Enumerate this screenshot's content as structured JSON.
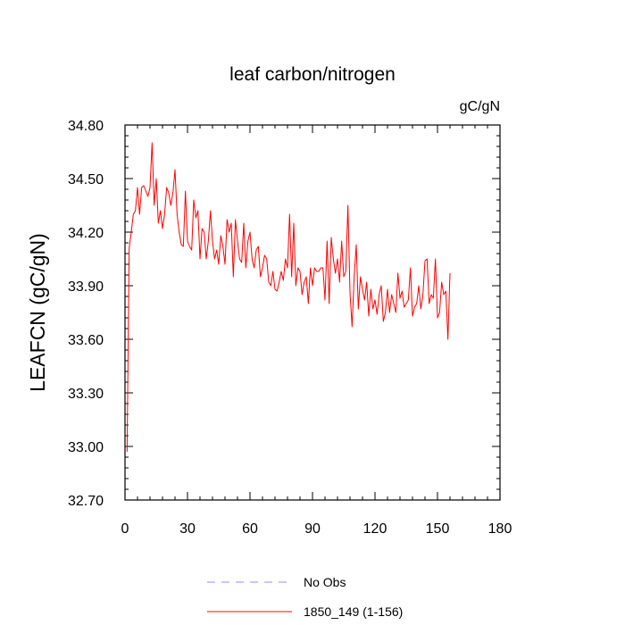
{
  "chart_data": {
    "type": "line",
    "title": "leaf carbon/nitrogen",
    "units_label": "gC/gN",
    "ylabel": "LEAFCN  (gC/gN)",
    "xlabel": "",
    "xlim": [
      0,
      180
    ],
    "ylim": [
      32.7,
      34.8
    ],
    "x_ticks": [
      0,
      30,
      60,
      90,
      120,
      150,
      180
    ],
    "x_tick_labels": [
      "0",
      "30",
      "60",
      "90",
      "120",
      "150",
      "180"
    ],
    "y_ticks": [
      32.7,
      33.0,
      33.3,
      33.6,
      33.9,
      34.2,
      34.5,
      34.8
    ],
    "y_tick_labels": [
      "32.70",
      "33.00",
      "33.30",
      "33.60",
      "33.90",
      "34.20",
      "34.50",
      "34.80"
    ],
    "grid": false,
    "legend_position": "bottom",
    "legend": [
      {
        "label": "No Obs",
        "color": "#8c8cff",
        "style": "dashed"
      },
      {
        "label": "1850_149 (1-156)",
        "color": "#ff0000",
        "style": "solid"
      }
    ],
    "series": [
      {
        "name": "1850_149 (1-156)",
        "color": "#ff0000",
        "x": [
          1,
          2,
          3,
          4,
          5,
          6,
          7,
          8,
          9,
          10,
          11,
          12,
          13,
          14,
          15,
          16,
          17,
          18,
          19,
          20,
          21,
          22,
          23,
          24,
          25,
          26,
          27,
          28,
          29,
          30,
          31,
          32,
          33,
          34,
          35,
          36,
          37,
          38,
          39,
          40,
          41,
          42,
          43,
          44,
          45,
          46,
          47,
          48,
          49,
          50,
          51,
          52,
          53,
          54,
          55,
          56,
          57,
          58,
          59,
          60,
          61,
          62,
          63,
          64,
          65,
          66,
          67,
          68,
          69,
          70,
          71,
          72,
          73,
          74,
          75,
          76,
          77,
          78,
          79,
          80,
          81,
          82,
          83,
          84,
          85,
          86,
          87,
          88,
          89,
          90,
          91,
          92,
          93,
          94,
          95,
          96,
          97,
          98,
          99,
          100,
          101,
          102,
          103,
          104,
          105,
          106,
          107,
          108,
          109,
          110,
          111,
          112,
          113,
          114,
          115,
          116,
          117,
          118,
          119,
          120,
          121,
          122,
          123,
          124,
          125,
          126,
          127,
          128,
          129,
          130,
          131,
          132,
          133,
          134,
          135,
          136,
          137,
          138,
          139,
          140,
          141,
          142,
          143,
          144,
          145,
          146,
          147,
          148,
          149,
          150,
          151,
          152,
          153,
          154,
          155,
          156
        ],
        "y": [
          32.97,
          34.11,
          34.2,
          34.3,
          34.32,
          34.45,
          34.3,
          34.45,
          34.46,
          34.43,
          34.4,
          34.45,
          34.7,
          34.35,
          34.5,
          34.25,
          34.32,
          34.22,
          34.3,
          34.45,
          34.42,
          34.35,
          34.42,
          34.55,
          34.3,
          34.2,
          34.13,
          34.12,
          34.43,
          34.15,
          34.12,
          34.1,
          34.38,
          34.28,
          34.32,
          34.05,
          34.22,
          34.2,
          34.05,
          34.15,
          34.32,
          34.15,
          34.05,
          34.1,
          34.02,
          34.18,
          34.12,
          34.02,
          34.27,
          34.2,
          34.25,
          33.95,
          34.27,
          34.15,
          34.05,
          34.03,
          34.25,
          34.0,
          34.15,
          34.2,
          34.05,
          34.0,
          34.1,
          34.12,
          33.95,
          34.0,
          34.07,
          34.05,
          33.92,
          33.9,
          33.98,
          33.88,
          33.87,
          33.92,
          33.98,
          33.93,
          34.05,
          34.0,
          34.3,
          33.95,
          34.25,
          33.9,
          34.0,
          33.98,
          33.85,
          33.92,
          33.95,
          33.8,
          34.0,
          33.9,
          34.0,
          33.98,
          33.98,
          34.0,
          34.0,
          33.82,
          34.15,
          33.8,
          34.17,
          34.05,
          33.97,
          34.05,
          33.92,
          34.15,
          33.95,
          33.98,
          34.35,
          33.86,
          33.67,
          33.95,
          34.13,
          33.77,
          33.95,
          33.88,
          33.82,
          33.92,
          33.73,
          33.88,
          33.77,
          33.82,
          33.74,
          33.85,
          33.9,
          33.7,
          33.75,
          33.88,
          33.75,
          33.85,
          33.8,
          33.75,
          33.97,
          33.83,
          33.87,
          33.78,
          33.8,
          33.82,
          34.0,
          33.73,
          33.78,
          33.8,
          33.9,
          33.77,
          33.85,
          34.04,
          34.05,
          33.8,
          33.85,
          33.83,
          34.05,
          33.72,
          33.75,
          33.92,
          33.85,
          33.87,
          33.6,
          33.97
        ]
      }
    ]
  }
}
